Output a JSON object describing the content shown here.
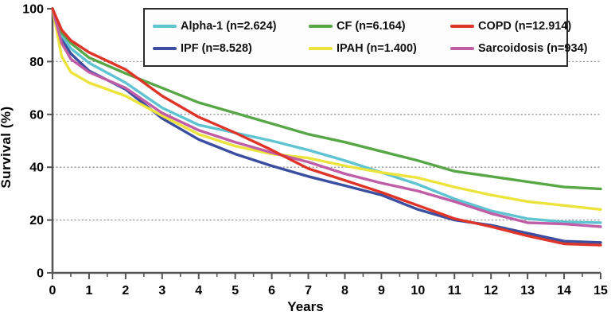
{
  "figure": {
    "xlabel": "Years",
    "ylabel": "Survival (%)"
  },
  "chart_data": {
    "type": "line",
    "title": "",
    "xlabel": "Years",
    "ylabel": "Survival (%)",
    "xlim": [
      0,
      15
    ],
    "ylim": [
      0,
      100
    ],
    "x_ticks": [
      0,
      1,
      2,
      3,
      4,
      5,
      6,
      7,
      8,
      9,
      10,
      11,
      12,
      13,
      14,
      15
    ],
    "y_ticks": [
      0,
      20,
      40,
      60,
      80,
      100
    ],
    "grid": "horizontal dashed gridlines at 20, 40, 60, 80",
    "legend_position": "top-center, 2 rows x 3 columns, boxed",
    "x": [
      0,
      0.25,
      0.5,
      1,
      2,
      3,
      4,
      5,
      6,
      7,
      8,
      9,
      10,
      11,
      12,
      13,
      14,
      15
    ],
    "series": [
      {
        "name": "Alpha-1 (n=2.624)",
        "label": "Alpha-1",
        "n": "2.624",
        "color": "#5fc4d2",
        "values": [
          100,
          90,
          85,
          79.5,
          72,
          62.5,
          56,
          53,
          50,
          46.5,
          42.5,
          38,
          33.5,
          28,
          23.5,
          20.5,
          19.3,
          19
        ]
      },
      {
        "name": "CF (n=6.164)",
        "label": "CF",
        "n": "6.164",
        "color": "#57a747",
        "values": [
          100,
          91,
          87,
          81.5,
          75.5,
          70,
          64.5,
          60.5,
          56.5,
          52.5,
          49.5,
          46,
          42.5,
          38.5,
          36.5,
          34.5,
          32.5,
          31.8
        ]
      },
      {
        "name": "COPD (n=12.914)",
        "label": "COPD",
        "n": "12.914",
        "color": "#df3428",
        "values": [
          100,
          92,
          88,
          83.5,
          77,
          67,
          59,
          53,
          46.5,
          39.5,
          35,
          30.5,
          25.5,
          20.5,
          17.5,
          14,
          11,
          10.5
        ]
      },
      {
        "name": "IPF (n=8.528)",
        "label": "IPF",
        "n": "8.528",
        "color": "#3b4ea0",
        "values": [
          100,
          88.5,
          83,
          76.5,
          69.5,
          58.5,
          50.5,
          45,
          40.5,
          36.5,
          33,
          29.5,
          24,
          20,
          18,
          15,
          12,
          11.5
        ]
      },
      {
        "name": "IPAH (n=1.400)",
        "label": "IPAH",
        "n": "1.400",
        "color": "#ece43c",
        "values": [
          100,
          82,
          76,
          72,
          67,
          59.5,
          52.5,
          48,
          45,
          43.5,
          40.5,
          38,
          36,
          32.5,
          29.5,
          27,
          25.5,
          24
        ]
      },
      {
        "name": "Sarcoidosis (n=934)",
        "label": "Sarcoidosis",
        "n": "934",
        "color": "#bf5da7",
        "values": [
          100,
          87,
          81,
          76,
          70,
          60.5,
          54,
          49.5,
          45.5,
          42,
          37.5,
          34,
          31,
          27,
          22.5,
          19,
          18.5,
          17.5
        ]
      }
    ],
    "colors": {
      "axis": "#555555",
      "grid": "#8f8f8f",
      "text": "#000000",
      "legend_border": "#2b2b2b"
    }
  }
}
